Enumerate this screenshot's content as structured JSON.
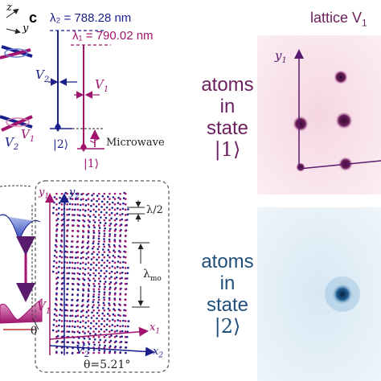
{
  "top_left": {
    "axis_z": "z",
    "axis_y": "y",
    "v1_label": "V",
    "v1_sub": "1",
    "v2_label": "V",
    "v2_sub": "2"
  },
  "panel_c": {
    "label": "c",
    "lambda2": "λ₂ = 788.28 nm",
    "lambda1": "λ₁ = 790.02 nm",
    "v2_label": "V",
    "v2_sub": "2",
    "v1_label": "V",
    "v1_sub": "1",
    "state2": "|2⟩",
    "state1": "|1⟩",
    "microwave": "Microwave"
  },
  "panel_lattice": {
    "y1": "y",
    "y1_sub": "1",
    "y2": "y",
    "y2_sub": "2",
    "x1": "x",
    "x1_sub": "1",
    "x2": "x",
    "x2_sub": "2",
    "half_lambda": "λ/2",
    "lambda_mo": "λ",
    "lambda_mo_sub": "mo",
    "v1_label": "V",
    "v1_sub": "1",
    "v2_label": "V",
    "v2_sub": "2",
    "angle": "θ=5.21°",
    "theta_left": "θ"
  },
  "right": {
    "lattice_title": "lattice V",
    "lattice_title_sub": "1",
    "y1": "y",
    "y1_sub": "1",
    "atoms_state1_lines": [
      "atoms",
      "in",
      "state",
      "|1⟩"
    ],
    "atoms_state2_lines": [
      "atoms",
      "in",
      "state",
      "|2⟩"
    ],
    "colors": {
      "purple": "#6b1f5e",
      "blue": "#1f4f7a",
      "magenta": "#b0187a",
      "navy": "#1a1f8c"
    }
  }
}
